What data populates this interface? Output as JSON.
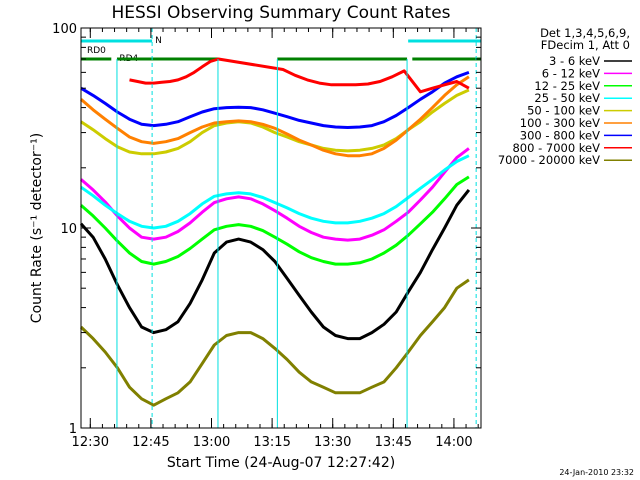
{
  "title": "HESSI Observing Summary Count Rates",
  "xlabel": "Start Time (24-Aug-07 12:27:42)",
  "ylabel": "Count Rate (s⁻¹ detector⁻¹)",
  "timestamp": "24-Jan-2010 23:32",
  "legend": {
    "header_lines": [
      "Det 1,3,4,5,6,9,",
      "FDecim 1, Att 0"
    ],
    "position": "right, outside plot"
  },
  "flags": {
    "rd0_label": "RD0",
    "rd4_label": "RD4",
    "n_label": "N",
    "rd0_color": "#00e0e0",
    "rd4_color": "#008000",
    "n_color": "#00e0e0"
  },
  "chart_data": {
    "type": "line",
    "x_unit": "minutes after 12:27:42",
    "xlim": [
      0,
      99
    ],
    "ylim": [
      1,
      100
    ],
    "y_scale": "log",
    "x_tick_labels": [
      {
        "x": 2.3,
        "label": "12:30"
      },
      {
        "x": 17.3,
        "label": "12:45"
      },
      {
        "x": 32.3,
        "label": "13:00"
      },
      {
        "x": 47.3,
        "label": "13:15"
      },
      {
        "x": 62.3,
        "label": "13:30"
      },
      {
        "x": 77.3,
        "label": "13:45"
      },
      {
        "x": 92.3,
        "label": "14:00"
      }
    ],
    "y_tick_labels": [
      {
        "y": 1,
        "label": "1"
      },
      {
        "y": 10,
        "label": "10"
      },
      {
        "y": 100,
        "label": "100"
      }
    ],
    "night_markers_x": [
      17.6,
      97.8
    ],
    "saa_markers_x": [
      8.9,
      33.9,
      48.6,
      80.7
    ],
    "series": [
      {
        "name": "3 - 6 keV",
        "color": "#000000",
        "x": [
          0,
          3,
          6,
          9,
          12,
          15,
          18,
          21,
          24,
          27,
          30,
          33,
          36,
          39,
          42,
          45,
          48,
          51,
          54,
          57,
          60,
          63,
          66,
          69,
          72,
          75,
          78,
          81,
          84,
          87,
          90,
          93,
          96
        ],
        "y": [
          10.5,
          9.0,
          7.0,
          5.2,
          4.0,
          3.2,
          3.0,
          3.1,
          3.4,
          4.2,
          5.5,
          7.5,
          8.5,
          8.8,
          8.5,
          7.8,
          6.8,
          5.6,
          4.6,
          3.8,
          3.2,
          2.9,
          2.8,
          2.8,
          3.0,
          3.3,
          3.8,
          4.8,
          6.0,
          7.8,
          10.0,
          13.0,
          15.5
        ]
      },
      {
        "name": "6 - 12 keV",
        "color": "#ff00ff",
        "x": [
          0,
          3,
          6,
          9,
          12,
          15,
          18,
          21,
          24,
          27,
          30,
          33,
          36,
          39,
          42,
          45,
          48,
          51,
          54,
          57,
          60,
          63,
          66,
          69,
          72,
          75,
          78,
          81,
          84,
          87,
          90,
          93,
          96
        ],
        "y": [
          17.5,
          15.5,
          13.5,
          11.5,
          10.0,
          9.0,
          8.8,
          9.0,
          9.6,
          10.6,
          12.0,
          13.4,
          14.0,
          14.3,
          14.0,
          13.2,
          12.2,
          11.2,
          10.2,
          9.5,
          9.0,
          8.8,
          8.7,
          8.8,
          9.2,
          9.8,
          10.8,
          12.0,
          13.8,
          16.0,
          19.0,
          22.5,
          25.0
        ]
      },
      {
        "name": "12 - 25 keV",
        "color": "#00ff00",
        "x": [
          0,
          3,
          6,
          9,
          12,
          15,
          18,
          21,
          24,
          27,
          30,
          33,
          36,
          39,
          42,
          45,
          48,
          51,
          54,
          57,
          60,
          63,
          66,
          69,
          72,
          75,
          78,
          81,
          84,
          87,
          90,
          93,
          96
        ],
        "y": [
          13.0,
          11.5,
          10.0,
          8.6,
          7.5,
          6.8,
          6.6,
          6.8,
          7.2,
          7.9,
          8.8,
          9.8,
          10.2,
          10.4,
          10.2,
          9.7,
          9.0,
          8.3,
          7.6,
          7.1,
          6.8,
          6.6,
          6.6,
          6.7,
          7.0,
          7.5,
          8.2,
          9.2,
          10.5,
          12.0,
          14.0,
          16.5,
          18.0
        ]
      },
      {
        "name": "25 - 50 keV",
        "color": "#00ffff",
        "x": [
          0,
          3,
          6,
          9,
          12,
          15,
          18,
          21,
          24,
          27,
          30,
          33,
          36,
          39,
          42,
          45,
          48,
          51,
          54,
          57,
          60,
          63,
          66,
          69,
          72,
          75,
          78,
          81,
          84,
          87,
          90,
          93,
          96
        ],
        "y": [
          16.0,
          14.5,
          13.0,
          11.8,
          10.8,
          10.2,
          10.0,
          10.2,
          10.8,
          11.8,
          13.2,
          14.4,
          14.8,
          15.0,
          14.8,
          14.2,
          13.4,
          12.6,
          11.8,
          11.2,
          10.8,
          10.6,
          10.6,
          10.8,
          11.2,
          11.8,
          12.8,
          14.2,
          15.8,
          17.5,
          19.5,
          21.5,
          23.0
        ]
      },
      {
        "name": "50 - 100 keV",
        "color": "#cccc00",
        "x": [
          0,
          3,
          6,
          9,
          12,
          15,
          18,
          21,
          24,
          27,
          30,
          33,
          36,
          39,
          42,
          45,
          48,
          51,
          54,
          57,
          60,
          63,
          66,
          69,
          72,
          75,
          78,
          81,
          84,
          87,
          90,
          93,
          96
        ],
        "y": [
          34.0,
          31.0,
          28.0,
          25.5,
          24.0,
          23.5,
          23.5,
          24.0,
          25.0,
          27.0,
          30.0,
          32.5,
          33.5,
          34.0,
          33.5,
          32.0,
          30.0,
          28.5,
          27.0,
          26.0,
          25.0,
          24.5,
          24.3,
          24.5,
          25.0,
          26.0,
          28.0,
          31.0,
          34.0,
          38.0,
          42.0,
          46.0,
          49.0
        ]
      },
      {
        "name": "100 - 300 keV",
        "color": "#ff8000",
        "x": [
          0,
          3,
          6,
          9,
          12,
          15,
          18,
          21,
          24,
          27,
          30,
          33,
          36,
          39,
          42,
          45,
          48,
          51,
          54,
          57,
          60,
          63,
          66,
          69,
          72,
          75,
          78,
          81,
          84,
          87,
          90,
          93,
          96
        ],
        "y": [
          44.0,
          39.0,
          35.0,
          31.5,
          28.5,
          27.0,
          26.5,
          27.0,
          28.0,
          30.0,
          32.0,
          33.5,
          34.0,
          34.3,
          34.0,
          33.0,
          31.5,
          29.5,
          27.5,
          26.0,
          24.5,
          23.5,
          23.0,
          23.0,
          23.5,
          25.0,
          27.5,
          31.0,
          35.0,
          40.0,
          46.0,
          52.0,
          57.0
        ]
      },
      {
        "name": "300 - 800 keV",
        "color": "#0000ff",
        "x": [
          0,
          3,
          6,
          9,
          12,
          15,
          18,
          21,
          24,
          27,
          30,
          33,
          36,
          39,
          42,
          45,
          48,
          51,
          54,
          57,
          60,
          63,
          66,
          69,
          72,
          75,
          78,
          81,
          84,
          87,
          90,
          93,
          96
        ],
        "y": [
          50.0,
          46.0,
          42.0,
          38.0,
          35.0,
          33.0,
          32.5,
          33.0,
          34.0,
          36.0,
          38.0,
          39.5,
          40.0,
          40.2,
          40.0,
          39.0,
          37.5,
          36.0,
          34.5,
          33.5,
          32.5,
          32.0,
          31.8,
          32.0,
          32.5,
          34.0,
          36.5,
          40.0,
          44.0,
          48.0,
          53.0,
          57.0,
          60.0
        ]
      },
      {
        "name": "800 - 7000 keV",
        "color": "#ff0000",
        "x": [
          12,
          14,
          16,
          18,
          20,
          22,
          24,
          26,
          28,
          30,
          32,
          34,
          50,
          53,
          56,
          59,
          62,
          65,
          68,
          71,
          74,
          77,
          80,
          84,
          87,
          90,
          93,
          96
        ],
        "y": [
          55.0,
          54.0,
          53.0,
          53.0,
          53.5,
          54.0,
          55.0,
          57.0,
          60.0,
          64.0,
          68.0,
          70.0,
          62.0,
          58.0,
          55.0,
          53.0,
          52.0,
          52.0,
          52.0,
          52.5,
          54.0,
          57.0,
          61.0,
          48.0,
          50.0,
          52.0,
          54.0,
          50.0
        ]
      },
      {
        "name": "7000 - 20000 keV",
        "color": "#808000",
        "x": [
          0,
          3,
          6,
          9,
          12,
          15,
          18,
          21,
          24,
          27,
          30,
          33,
          36,
          39,
          42,
          45,
          48,
          51,
          54,
          57,
          60,
          63,
          66,
          69,
          72,
          75,
          78,
          81,
          84,
          87,
          90,
          93,
          96
        ],
        "y": [
          3.2,
          2.8,
          2.4,
          2.0,
          1.6,
          1.4,
          1.3,
          1.4,
          1.5,
          1.7,
          2.1,
          2.6,
          2.9,
          3.0,
          3.0,
          2.8,
          2.5,
          2.2,
          1.9,
          1.7,
          1.6,
          1.5,
          1.5,
          1.5,
          1.6,
          1.7,
          2.0,
          2.4,
          2.9,
          3.4,
          4.0,
          5.0,
          5.5
        ]
      }
    ]
  }
}
